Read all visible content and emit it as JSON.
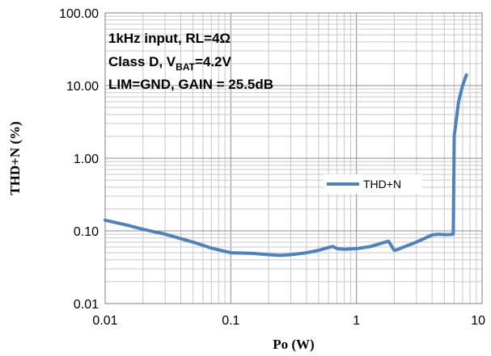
{
  "chart_data": {
    "type": "line",
    "xscale": "log",
    "yscale": "log",
    "xlim": [
      0.01,
      10
    ],
    "ylim": [
      0.01,
      100
    ],
    "xlabel": "Po (W)",
    "ylabel": "THD+N (%)",
    "x_tick_labels": [
      "0.01",
      "0.1",
      "1",
      "10"
    ],
    "y_tick_labels": [
      "100.00",
      "10.00",
      "1.00",
      "0.10",
      "0.01"
    ],
    "grid": true,
    "legend_position": "center-right",
    "annotations": {
      "line1": "1kHz input, RL=4Ω",
      "line2_prefix": "Class D, V",
      "line2_sub": "BAT",
      "line2_suffix": "=4.2V",
      "line3": "LIM=GND, GAIN = 25.5dB"
    },
    "series_color": "#4f81bd",
    "series": [
      {
        "name": "THD+N",
        "x": [
          0.01,
          0.015,
          0.02,
          0.03,
          0.05,
          0.07,
          0.1,
          0.15,
          0.2,
          0.25,
          0.3,
          0.4,
          0.5,
          0.6,
          0.65,
          0.7,
          0.8,
          1.0,
          1.3,
          1.6,
          1.8,
          2.0,
          2.1,
          2.5,
          3.0,
          4.0,
          4.5,
          5.0,
          5.5,
          5.9,
          6.0,
          6.5,
          7.0,
          7.5
        ],
        "values": [
          0.14,
          0.12,
          0.105,
          0.09,
          0.07,
          0.058,
          0.05,
          0.049,
          0.047,
          0.046,
          0.047,
          0.05,
          0.054,
          0.059,
          0.061,
          0.057,
          0.056,
          0.057,
          0.061,
          0.068,
          0.072,
          0.054,
          0.055,
          0.062,
          0.07,
          0.088,
          0.09,
          0.089,
          0.089,
          0.09,
          2.0,
          6.0,
          10.0,
          14.0
        ]
      }
    ]
  }
}
